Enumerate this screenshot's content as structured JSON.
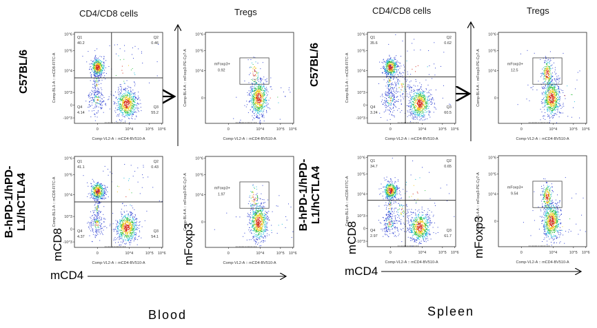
{
  "panels": [
    {
      "tissue": "Blood",
      "col_headers": [
        "CD4/CD8 cells",
        "Tregs"
      ],
      "axis_label_y_cd8": "mCD8",
      "axis_label_y_foxp3": "mFoxp3",
      "axis_label_x": "mCD4"
    },
    {
      "tissue": "Spleen",
      "col_headers": [
        "CD4/CD8 cells",
        "Tregs"
      ],
      "axis_label_y_cd8": "mCD8",
      "axis_label_y_foxp3": "mFoxp3",
      "axis_label_x": "mCD4"
    }
  ],
  "row_labels": [
    "C57BL/6",
    "B-hPD-1/hPD-L1/hCTLA4"
  ],
  "row_label_lines": [
    [
      "C57BL/6"
    ],
    [
      "B-hPD-1/hPD-",
      "L1/hCTLA4"
    ]
  ],
  "chart_data": {
    "type": "scatter",
    "subtype": "flow cytometry density plots",
    "x_axis_label": "Comp-VL2-A :: mCD4-BV510-A",
    "y_axis_label_cd4cd8": "Comp-BL1-A :: mCD8-FITC-A",
    "y_axis_label_tregs": "Comp-BL4-A :: mFoxp3-PE-Cy7-A",
    "x_ticks": [
      "0",
      "10^4",
      "10^5",
      "10^6"
    ],
    "y_ticks_cd4cd8": [
      "10^6",
      "10^5",
      "10^4",
      "10^3",
      "0",
      "-10^3"
    ],
    "y_ticks_tregs": [
      "10^6",
      "10^5",
      "10^4",
      "0"
    ],
    "scale": "biexponential",
    "plots": [
      {
        "tissue": "Blood",
        "strain": "C57BL/6",
        "quadrants": {
          "Q1": "40.2",
          "Q2": "0.46",
          "Q3": "55.2",
          "Q4": "4.14"
        },
        "gate_label": "mFoxp3+",
        "gate_value": "0.92"
      },
      {
        "tissue": "Blood",
        "strain": "B-hPD-1/hPD-L1/hCTLA4",
        "quadrants": {
          "Q1": "41.1",
          "Q2": "0.43",
          "Q3": "54.1",
          "Q4": "4.37"
        },
        "gate_label": "mFoxp3+",
        "gate_value": "1.97"
      },
      {
        "tissue": "Spleen",
        "strain": "C57BL/6",
        "quadrants": {
          "Q1": "35.6",
          "Q2": "0.62",
          "Q3": "60.5",
          "Q4": "3.24"
        },
        "gate_label": "mFoxp3+",
        "gate_value": "12.5"
      },
      {
        "tissue": "Spleen",
        "strain": "B-hPD-1/hPD-L1/hCTLA4",
        "quadrants": {
          "Q1": "34.7",
          "Q2": "0.65",
          "Q3": "61.7",
          "Q4": "2.97"
        },
        "gate_label": "mFoxp3+",
        "gate_value": "9.54"
      }
    ]
  }
}
